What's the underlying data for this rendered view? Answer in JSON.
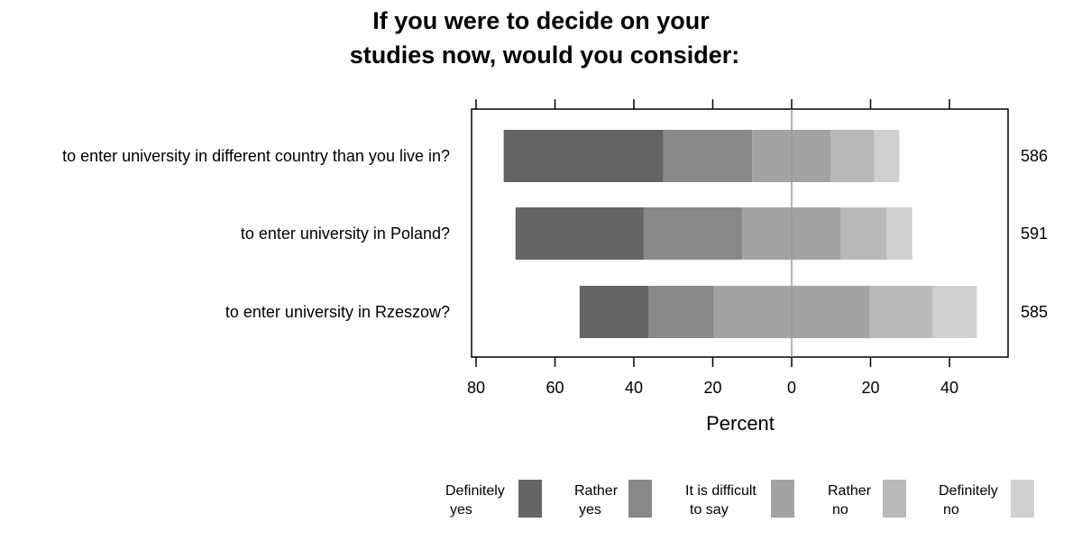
{
  "chart_data": {
    "type": "bar",
    "subtype": "diverging-stacked-horizontal",
    "title_lines": [
      "If you were to decide on your",
      "studies now, would you consider:"
    ],
    "xlabel": "Percent",
    "xlim": [
      -80,
      55
    ],
    "xticks": [
      -80,
      -60,
      -40,
      -20,
      0,
      20,
      40
    ],
    "xtick_labels": [
      "80",
      "60",
      "40",
      "20",
      "0",
      "20",
      "40"
    ],
    "categories": [
      "to enter university in different country than you live in?",
      "to enter university in Poland?",
      "to enter university in Rzeszow?"
    ],
    "counts": [
      "586",
      "591",
      "585"
    ],
    "series": [
      {
        "name": "Definitely yes",
        "legend_lines": [
          "Definitely",
          "yes"
        ],
        "color": "#656565",
        "values": [
          40.5,
          32.5,
          17.5
        ]
      },
      {
        "name": "Rather yes",
        "legend_lines": [
          "Rather",
          "yes"
        ],
        "color": "#888888",
        "values": [
          22.5,
          25.0,
          16.5
        ]
      },
      {
        "name": "It is difficult to say",
        "legend_lines": [
          "It is difficult",
          "to say"
        ],
        "color": "#a3a3a3",
        "values": [
          20.0,
          25.0,
          39.5
        ]
      },
      {
        "name": "Rather no",
        "legend_lines": [
          "Rather",
          "no"
        ],
        "color": "#b9b9b9",
        "values": [
          11.0,
          11.5,
          16.0
        ]
      },
      {
        "name": "Definitely no",
        "legend_lines": [
          "Definitely",
          "no"
        ],
        "color": "#d0d0d0",
        "values": [
          6.3,
          6.6,
          11.2
        ]
      }
    ],
    "legend_position": "bottom",
    "grid": false
  }
}
